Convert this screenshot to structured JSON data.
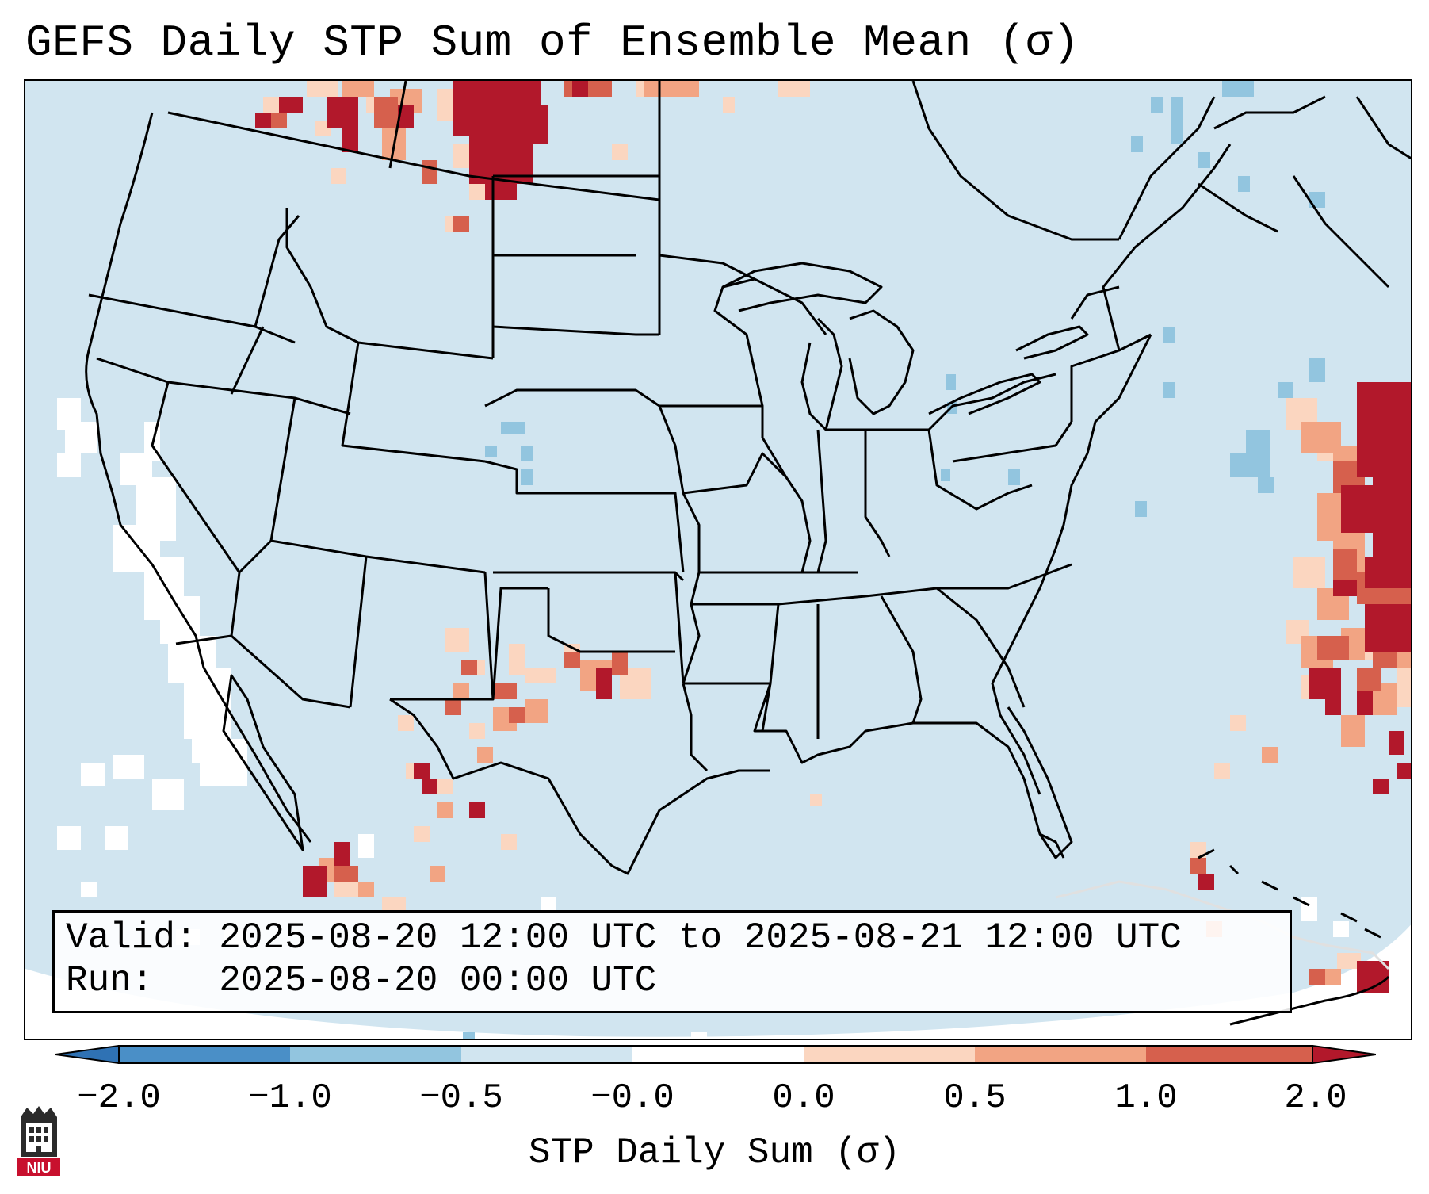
{
  "title": "GEFS Daily STP Sum of Ensemble Mean (σ)",
  "info": {
    "valid_label": "Valid:",
    "valid_value": "2025-08-20 12:00 UTC to 2025-08-21 12:00 UTC",
    "run_label": "Run:",
    "run_value": "2025-08-20 00:00 UTC"
  },
  "colorbar": {
    "label": "STP Daily Sum (σ)",
    "ticks": [
      "−2.0",
      "−1.0",
      "−0.5",
      "−0.0",
      "0.0",
      "0.5",
      "1.0",
      "2.0"
    ],
    "colors": [
      "#4a8fc7",
      "#92c5df",
      "#d1e5f0",
      "#ffffff",
      "#fbd6c0",
      "#f2a483",
      "#d6604d",
      "#b2182b"
    ],
    "under_color": "#2f72b4",
    "over_color": "#b2182b"
  },
  "colors": {
    "background": "#d1e5f0",
    "neutral": "#ffffff",
    "light_blue": "#92c5df",
    "light_red": "#fbd6c0",
    "mid_red": "#f2a483",
    "red": "#d6604d",
    "dark_red": "#b2182b"
  },
  "logo": {
    "text": "NIU",
    "icon": "university-tower-icon"
  }
}
